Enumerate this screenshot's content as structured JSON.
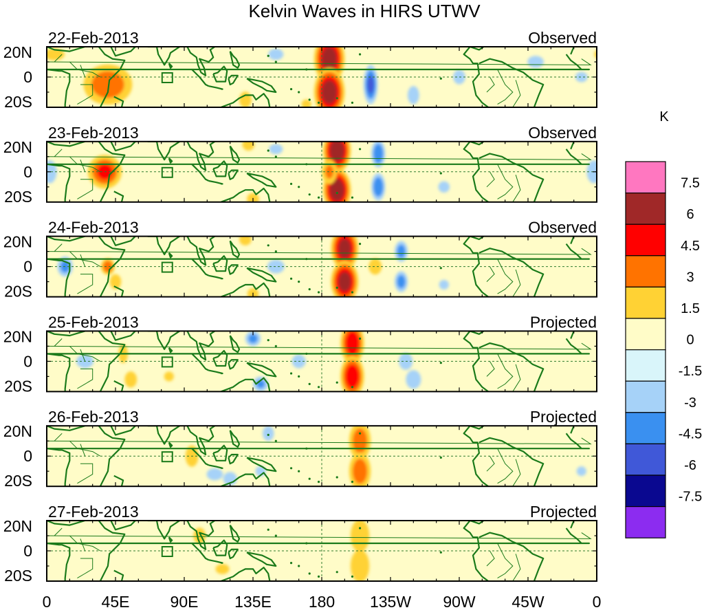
{
  "title": "Kelvin Waves in HIRS UTWV",
  "panels": [
    {
      "date": "22-Feb-2013",
      "status": "Observed",
      "blobs": [
        [
          185,
          12,
          10,
          2.5,
          16,
          6.8
        ],
        [
          185,
          -10,
          10,
          2.5,
          16,
          6.8
        ],
        [
          212,
          -5,
          5,
          2.5,
          14,
          -4.5
        ],
        [
          40,
          -5,
          18,
          2.5,
          15,
          3.8
        ],
        [
          130,
          -15,
          6,
          2.5,
          8,
          2.0
        ],
        [
          270,
          0,
          5,
          2.5,
          6,
          -2.8
        ],
        [
          240,
          -12,
          5,
          2.5,
          8,
          -2.5
        ],
        [
          350,
          0,
          6,
          2.5,
          5,
          -2.0
        ],
        [
          320,
          10,
          8,
          2.5,
          6,
          -2.0
        ],
        [
          150,
          15,
          8,
          2.5,
          6,
          -1.8
        ],
        [
          300,
          15,
          6,
          2.5,
          6,
          1.2
        ],
        [
          75,
          10,
          10,
          2.5,
          8,
          -1.4
        ],
        [
          100,
          0,
          20,
          2.5,
          6,
          -1.0
        ],
        [
          5,
          15,
          10,
          2.5,
          6,
          2.0
        ],
        [
          250,
          5,
          40,
          2.5,
          10,
          -1.0
        ],
        [
          170,
          -18,
          6,
          2.5,
          6,
          1.5
        ],
        [
          60,
          -15,
          8,
          2.5,
          8,
          1.2
        ]
      ]
    },
    {
      "date": "23-Feb-2013",
      "status": "Observed",
      "blobs": [
        [
          190,
          14,
          9,
          2.5,
          14,
          7.2
        ],
        [
          190,
          -12,
          9,
          2.5,
          14,
          7.2
        ],
        [
          185,
          0,
          6,
          2.5,
          10,
          3.0
        ],
        [
          217,
          12,
          5,
          2.5,
          10,
          -4.2
        ],
        [
          217,
          -10,
          5,
          2.5,
          10,
          -4.2
        ],
        [
          38,
          0,
          12,
          2.5,
          12,
          4.5
        ],
        [
          2,
          0,
          6,
          2.5,
          10,
          -2.5
        ],
        [
          358,
          0,
          6,
          2.5,
          10,
          -2.5
        ],
        [
          132,
          18,
          6,
          2.5,
          6,
          2.0
        ],
        [
          135,
          -18,
          6,
          2.5,
          6,
          2.0
        ],
        [
          300,
          0,
          4,
          2.5,
          4,
          1.0
        ],
        [
          260,
          -10,
          6,
          2.5,
          6,
          -1.8
        ],
        [
          280,
          5,
          8,
          2.5,
          6,
          -1.2
        ],
        [
          100,
          -10,
          10,
          2.5,
          8,
          1.0
        ],
        [
          150,
          15,
          8,
          2.5,
          6,
          -1.6
        ],
        [
          320,
          -15,
          10,
          2.5,
          6,
          -1.0
        ]
      ]
    },
    {
      "date": "24-Feb-2013",
      "status": "Observed",
      "blobs": [
        [
          195,
          12,
          9,
          2.5,
          14,
          6.5
        ],
        [
          195,
          -10,
          9,
          2.5,
          14,
          6.5
        ],
        [
          215,
          0,
          8,
          2.5,
          10,
          1.5
        ],
        [
          232,
          10,
          5,
          2.5,
          8,
          -3.5
        ],
        [
          232,
          -10,
          5,
          2.5,
          8,
          -3.5
        ],
        [
          12,
          0,
          6,
          2.5,
          8,
          -3.2
        ],
        [
          40,
          0,
          5,
          2.5,
          6,
          4.2
        ],
        [
          45,
          -10,
          6,
          2.5,
          8,
          1.8
        ],
        [
          130,
          18,
          6,
          2.5,
          6,
          2.0
        ],
        [
          135,
          -18,
          6,
          2.5,
          6,
          1.8
        ],
        [
          150,
          0,
          10,
          2.5,
          8,
          -1.6
        ],
        [
          260,
          -12,
          6,
          2.5,
          6,
          -1.5
        ],
        [
          290,
          -5,
          8,
          2.5,
          6,
          -1.2
        ],
        [
          100,
          5,
          10,
          2.5,
          8,
          -1.0
        ],
        [
          350,
          0,
          8,
          2.5,
          6,
          -1.0
        ],
        [
          70,
          10,
          10,
          2.5,
          10,
          -1.4
        ]
      ]
    },
    {
      "date": "25-Feb-2013",
      "status": "Projected",
      "blobs": [
        [
          200,
          12,
          8,
          2.5,
          14,
          5.6
        ],
        [
          200,
          -10,
          8,
          2.5,
          14,
          5.6
        ],
        [
          235,
          0,
          8,
          2.5,
          10,
          -1.6
        ],
        [
          240,
          -12,
          8,
          2.5,
          10,
          -1.8
        ],
        [
          135,
          15,
          6,
          2.5,
          6,
          -3.2
        ],
        [
          140,
          -15,
          6,
          2.5,
          6,
          -3.0
        ],
        [
          50,
          5,
          5,
          2.5,
          10,
          1.8
        ],
        [
          55,
          -12,
          6,
          2.5,
          8,
          2.0
        ],
        [
          80,
          -10,
          6,
          2.5,
          6,
          1.5
        ],
        [
          25,
          0,
          10,
          2.5,
          8,
          -1.6
        ],
        [
          165,
          0,
          8,
          2.5,
          8,
          -1.6
        ],
        [
          100,
          10,
          8,
          2.5,
          8,
          1.2
        ],
        [
          290,
          0,
          10,
          2.5,
          8,
          -1.0
        ],
        [
          320,
          -10,
          10,
          2.5,
          6,
          -1.0
        ]
      ]
    },
    {
      "date": "26-Feb-2013",
      "status": "Projected",
      "blobs": [
        [
          205,
          10,
          8,
          2.5,
          14,
          3.8
        ],
        [
          205,
          -10,
          8,
          2.5,
          14,
          3.8
        ],
        [
          95,
          0,
          6,
          2.5,
          10,
          2.2
        ],
        [
          110,
          -12,
          8,
          2.5,
          6,
          -2.0
        ],
        [
          120,
          -15,
          6,
          2.5,
          6,
          -2.5
        ],
        [
          145,
          15,
          6,
          2.5,
          8,
          -1.8
        ],
        [
          140,
          -10,
          6,
          2.5,
          6,
          -1.6
        ],
        [
          240,
          10,
          10,
          2.5,
          10,
          -1.0
        ],
        [
          235,
          -10,
          10,
          2.5,
          10,
          -1.0
        ],
        [
          300,
          -15,
          8,
          2.5,
          6,
          -1.2
        ],
        [
          350,
          -10,
          6,
          2.5,
          6,
          -1.5
        ],
        [
          40,
          10,
          6,
          2.5,
          6,
          1.2
        ],
        [
          170,
          0,
          10,
          2.5,
          10,
          1.2
        ],
        [
          270,
          0,
          15,
          2.5,
          10,
          -0.8
        ]
      ]
    },
    {
      "date": "27-Feb-2013",
      "status": "Projected",
      "blobs": [
        [
          205,
          10,
          8,
          2.5,
          14,
          2.6
        ],
        [
          205,
          -10,
          8,
          2.5,
          14,
          2.6
        ],
        [
          100,
          10,
          6,
          2.5,
          8,
          2.0
        ],
        [
          115,
          -12,
          8,
          2.5,
          6,
          1.6
        ],
        [
          150,
          -5,
          8,
          2.5,
          10,
          -1.0
        ],
        [
          240,
          0,
          12,
          2.5,
          12,
          -1.2
        ],
        [
          300,
          -10,
          8,
          2.5,
          6,
          -0.8
        ],
        [
          60,
          0,
          10,
          2.5,
          10,
          1.0
        ],
        [
          175,
          0,
          8,
          2.5,
          10,
          1.0
        ],
        [
          20,
          -15,
          8,
          2.5,
          6,
          -0.8
        ],
        [
          340,
          0,
          10,
          2.5,
          10,
          -0.8
        ]
      ]
    }
  ],
  "y_ticks": [
    "20N",
    "0",
    "20S"
  ],
  "x_ticks": [
    "0",
    "45E",
    "90E",
    "135E",
    "180",
    "135W",
    "90W",
    "45W",
    "0"
  ],
  "colorbar": {
    "unit": "K",
    "labels": [
      "7.5",
      "6",
      "4.5",
      "3",
      "1.5",
      "0",
      "-1.5",
      "-3",
      "-4.5",
      "-6",
      "-7.5"
    ],
    "colors": [
      "#ff77c0",
      "#a02828",
      "#ff0000",
      "#ff7300",
      "#ffd234",
      "#fffcc8",
      "#d9f5fa",
      "#a6d2f8",
      "#3a90f0",
      "#4058d8",
      "#0a0890",
      "#8c2cf0"
    ]
  },
  "style": {
    "coast_color": "#1a7a1a",
    "grid_color": "#2d7a2d"
  }
}
